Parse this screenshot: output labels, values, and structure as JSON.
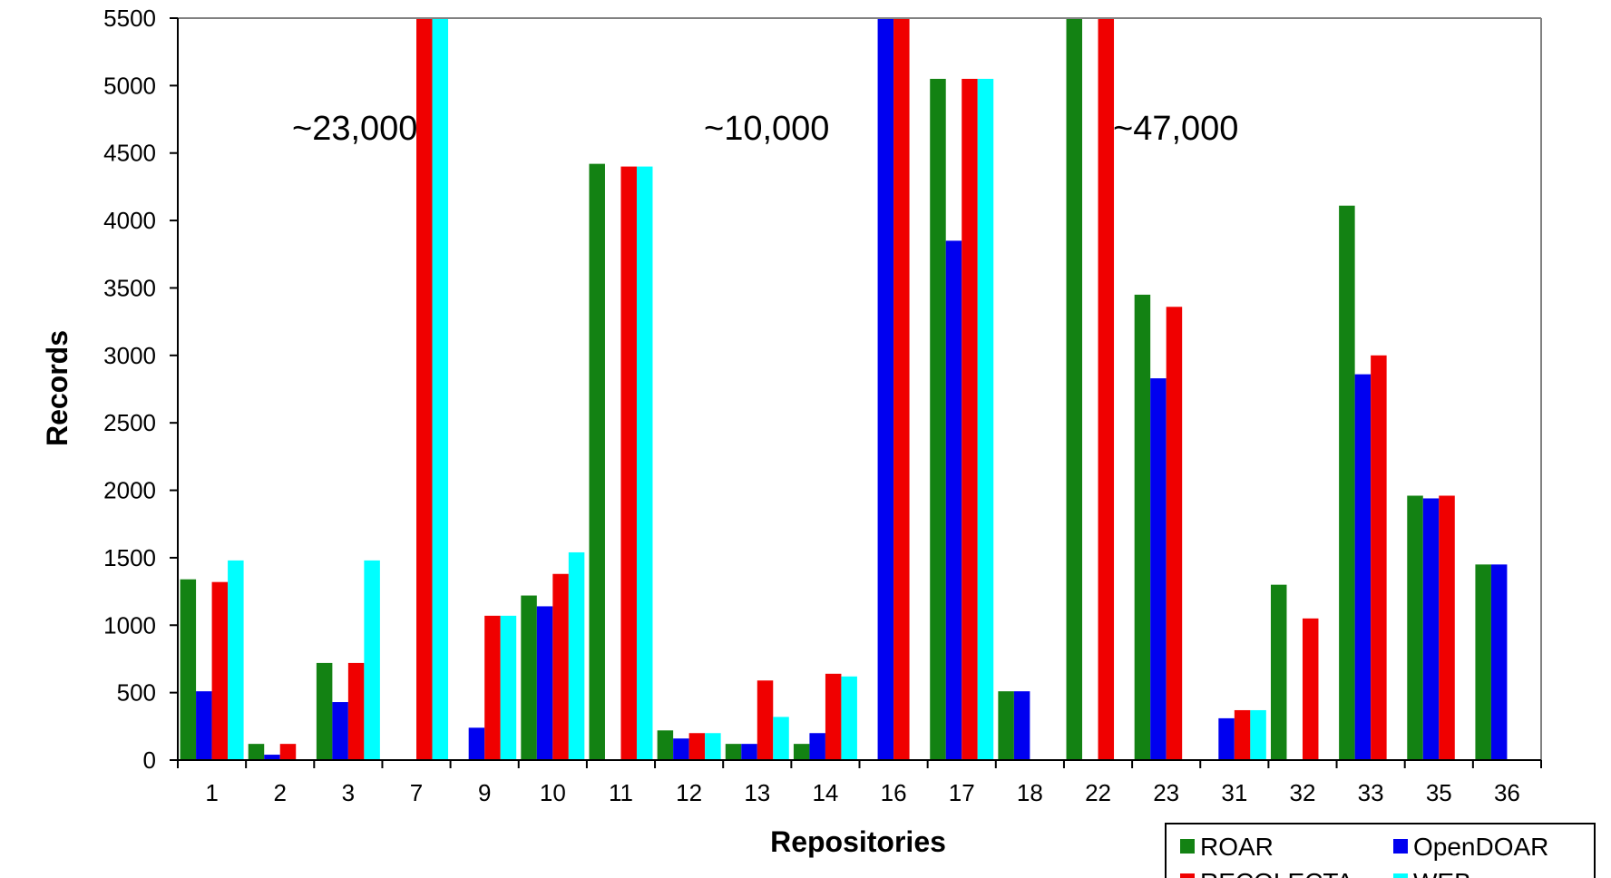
{
  "chart_data": {
    "type": "bar",
    "title": "",
    "xlabel": "Repositories",
    "ylabel": "Records",
    "ylim": [
      0,
      5500
    ],
    "yticks": [
      0,
      500,
      1000,
      1500,
      2000,
      2500,
      3000,
      3500,
      4000,
      4500,
      5000,
      5500
    ],
    "grid": false,
    "legend_position": "bottom-right",
    "categories": [
      "1",
      "2",
      "3",
      "7",
      "9",
      "10",
      "11",
      "12",
      "13",
      "14",
      "16",
      "17",
      "18",
      "22",
      "23",
      "31",
      "32",
      "33",
      "35",
      "36"
    ],
    "series": [
      {
        "name": "ROAR",
        "color": "#138213",
        "values": [
          1340,
          120,
          720,
          0,
          0,
          1220,
          4420,
          220,
          120,
          120,
          0,
          5050,
          510,
          5500,
          3450,
          0,
          1300,
          4110,
          1960,
          1450
        ]
      },
      {
        "name": "OpenDOAR",
        "color": "#0000f0",
        "values": [
          510,
          40,
          430,
          0,
          240,
          1140,
          0,
          160,
          120,
          200,
          5500,
          3850,
          510,
          0,
          2830,
          310,
          0,
          2860,
          1940,
          1450
        ]
      },
      {
        "name": "RECOLECTA",
        "color": "#f00000",
        "values": [
          1320,
          120,
          720,
          5500,
          1070,
          1380,
          4400,
          200,
          590,
          640,
          5500,
          5050,
          0,
          5500,
          3360,
          370,
          1050,
          3000,
          1960,
          0
        ]
      },
      {
        "name": "WEB",
        "color": "#00ffff",
        "values": [
          1480,
          0,
          1480,
          5500,
          1070,
          1540,
          4400,
          200,
          320,
          620,
          0,
          5050,
          0,
          0,
          0,
          370,
          0,
          0,
          0,
          0
        ]
      }
    ],
    "annotations": [
      "~23,000",
      "~10,000",
      "~47,000"
    ]
  }
}
